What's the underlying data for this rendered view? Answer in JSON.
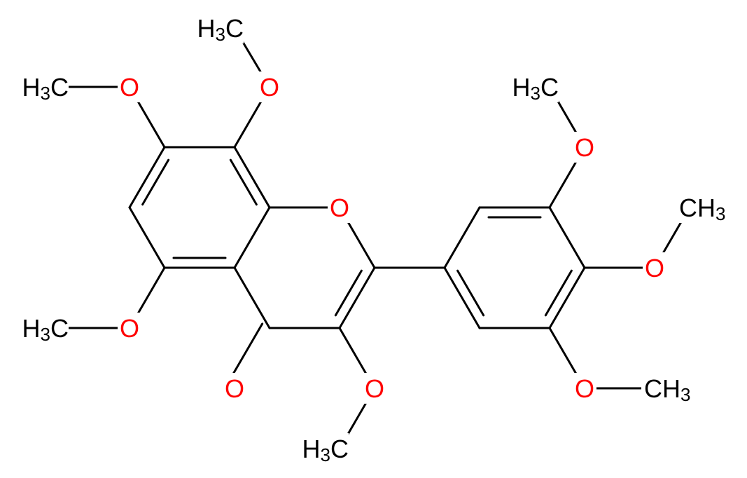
{
  "labels": [
    {
      "parts": [
        "O"
      ]
    },
    {
      "parts": [
        "O"
      ]
    },
    {
      "parts": [
        "O"
      ]
    },
    {
      "parts": [
        "H",
        "3",
        "C"
      ]
    },
    {
      "parts": [
        "O"
      ]
    },
    {
      "parts": [
        "H",
        "3",
        "C"
      ]
    },
    {
      "parts": [
        "O"
      ]
    },
    {
      "parts": [
        "H",
        "3",
        "C"
      ]
    },
    {
      "parts": [
        "O"
      ]
    },
    {
      "parts": [
        "H",
        "3",
        "C"
      ]
    },
    {
      "parts": [
        "O"
      ]
    },
    {
      "parts": [
        "H",
        "3",
        "C"
      ]
    },
    {
      "parts": [
        "O"
      ]
    },
    {
      "parts": [
        "C",
        "H",
        "3"
      ]
    },
    {
      "parts": [
        "O"
      ]
    },
    {
      "parts": [
        "C",
        "H",
        "3"
      ]
    }
  ]
}
